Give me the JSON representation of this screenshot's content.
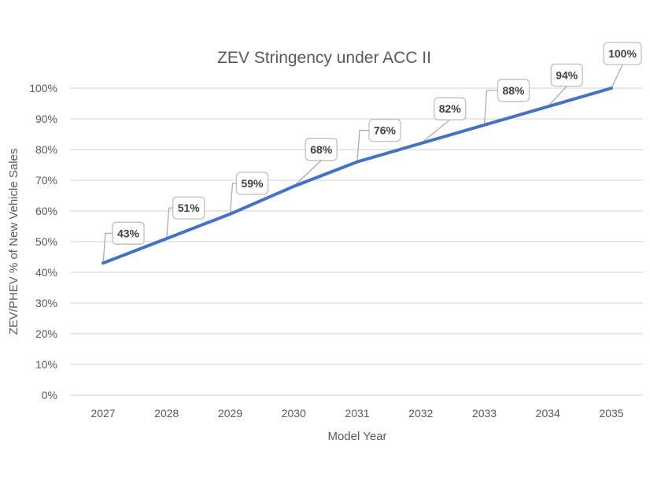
{
  "chart_data": {
    "type": "line",
    "title": "ZEV Stringency under ACC II",
    "xlabel": "Model Year",
    "ylabel": "ZEV/PHEV % of New Vehicle Sales",
    "categories": [
      "2027",
      "2028",
      "2029",
      "2030",
      "2031",
      "2032",
      "2033",
      "2034",
      "2035"
    ],
    "series": [
      {
        "name": "ZEV/PHEV % of New Vehicle Sales",
        "values": [
          43,
          51,
          59,
          68,
          76,
          82,
          88,
          94,
          100
        ],
        "labels": [
          "43%",
          "51%",
          "59%",
          "68%",
          "76%",
          "82%",
          "88%",
          "94%",
          "100%"
        ],
        "color": "#4472c4"
      }
    ],
    "ylim": [
      0,
      100
    ],
    "yticks": [
      0,
      10,
      20,
      30,
      40,
      50,
      60,
      70,
      80,
      90,
      100
    ],
    "ytick_labels": [
      "0%",
      "10%",
      "20%",
      "30%",
      "40%",
      "50%",
      "60%",
      "70%",
      "80%",
      "90%",
      "100%"
    ],
    "grid": true,
    "legend": "none",
    "data_labels": "callouts above-left of each point"
  }
}
